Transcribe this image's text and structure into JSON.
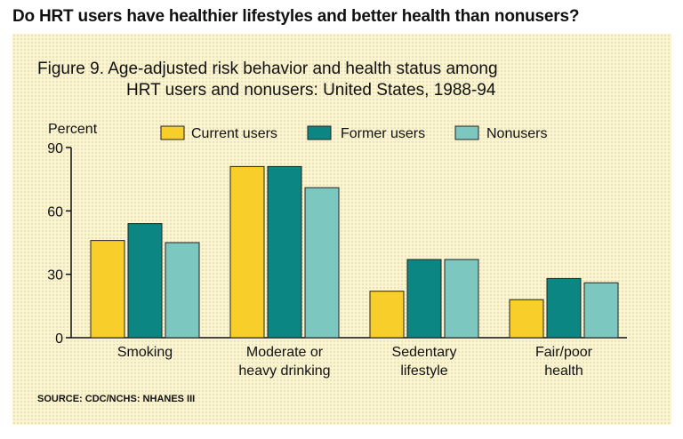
{
  "headline": "Do HRT users have healthier lifestyles and better health than nonusers?",
  "figure": {
    "title_line1": "Figure 9. Age-adjusted risk behavior and health status among",
    "title_line2": "HRT users and nonusers: United States, 1988-94"
  },
  "source": "SOURCE: CDC/NCHS: NHANES III",
  "colors": {
    "current": "#f7ce2a",
    "former": "#0b8683",
    "nonusers": "#7cc8c0",
    "stroke": "#222222"
  },
  "chart_data": {
    "type": "bar",
    "ylabel": "Percent",
    "ylim": [
      0,
      90
    ],
    "yticks": [
      0,
      30,
      60,
      90
    ],
    "categories": [
      [
        "Smoking"
      ],
      [
        "Moderate or",
        "heavy drinking"
      ],
      [
        "Sedentary",
        "lifestyle"
      ],
      [
        "Fair/poor",
        "health"
      ]
    ],
    "series": [
      {
        "name": "Current users",
        "color_key": "current",
        "values": [
          46,
          81,
          22,
          18
        ]
      },
      {
        "name": "Former users",
        "color_key": "former",
        "values": [
          54,
          81,
          37,
          28
        ]
      },
      {
        "name": "Nonusers",
        "color_key": "nonusers",
        "values": [
          45,
          71,
          37,
          26
        ]
      }
    ],
    "legend": "top"
  }
}
